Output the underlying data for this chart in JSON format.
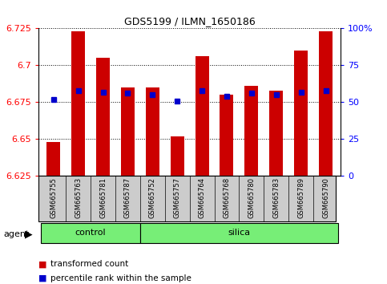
{
  "title": "GDS5199 / ILMN_1650186",
  "samples": [
    "GSM665755",
    "GSM665763",
    "GSM665781",
    "GSM665787",
    "GSM665752",
    "GSM665757",
    "GSM665764",
    "GSM665768",
    "GSM665780",
    "GSM665783",
    "GSM665789",
    "GSM665790"
  ],
  "groups": [
    "control",
    "control",
    "control",
    "control",
    "silica",
    "silica",
    "silica",
    "silica",
    "silica",
    "silica",
    "silica",
    "silica"
  ],
  "transformed_count": [
    6.648,
    6.723,
    6.705,
    6.685,
    6.685,
    6.652,
    6.706,
    6.68,
    6.686,
    6.683,
    6.71,
    6.723
  ],
  "percentile_rank": [
    52,
    58,
    57,
    56,
    55,
    51,
    58,
    54,
    56,
    55,
    57,
    58
  ],
  "ymin": 6.625,
  "ymax": 6.725,
  "yticks": [
    6.625,
    6.65,
    6.675,
    6.7,
    6.725
  ],
  "ytick_labels": [
    "6.625",
    "6.65",
    "6.675",
    "6.7",
    "6.725"
  ],
  "right_yticks": [
    0,
    25,
    50,
    75,
    100
  ],
  "right_ytick_labels": [
    "0",
    "25",
    "50",
    "75",
    "100%"
  ],
  "bar_color": "#cc0000",
  "marker_color": "#0000cc",
  "green_color": "#77ee77",
  "gray_color": "#cccccc",
  "bar_width": 0.55,
  "base_value": 6.625,
  "legend_items": [
    "transformed count",
    "percentile rank within the sample"
  ],
  "legend_colors": [
    "#cc0000",
    "#0000cc"
  ],
  "control_count": 4,
  "silica_count": 8
}
